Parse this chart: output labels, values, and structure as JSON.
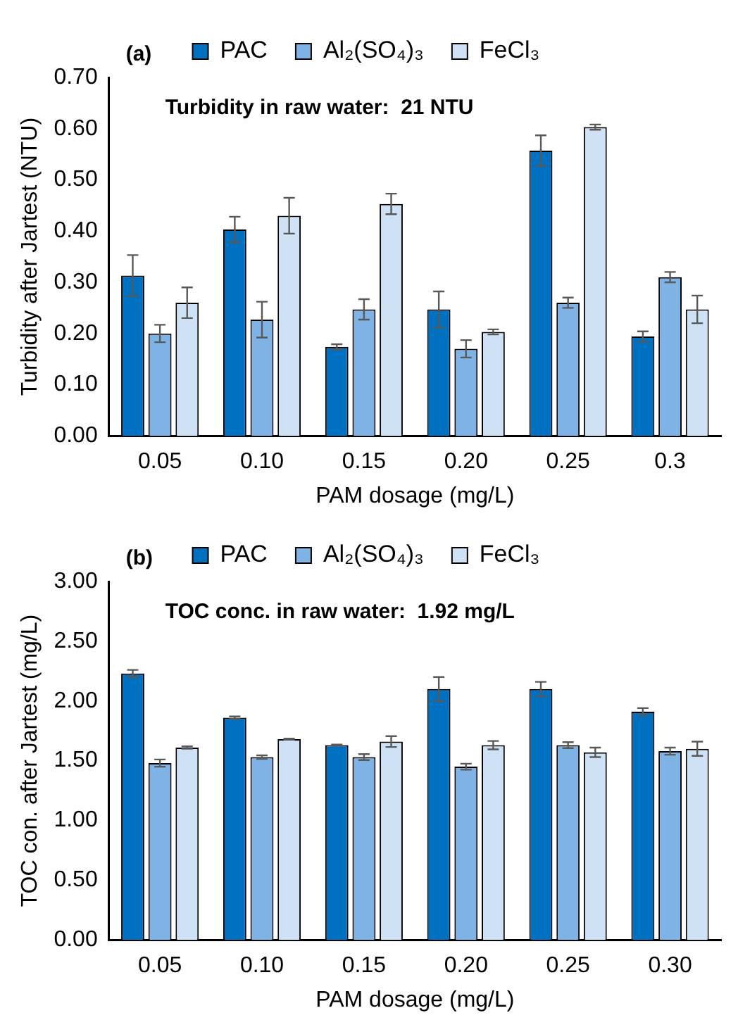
{
  "chart_data": [
    {
      "type": "bar",
      "annotations": [
        "(a)",
        "Turbidity in raw water:  21 NTU"
      ],
      "xlabel": "PAM dosage (mg/L)",
      "ylabel": "Turbidity after Jartest (NTU)",
      "categories": [
        "0.05",
        "0.10",
        "0.15",
        "0.20",
        "0.25",
        "0.3"
      ],
      "series": [
        {
          "name": "PAC",
          "color": "#0070c0",
          "values": [
            0.313,
            0.403,
            0.174,
            0.247,
            0.557,
            0.194
          ],
          "errors": [
            0.04,
            0.025,
            0.005,
            0.035,
            0.03,
            0.01
          ]
        },
        {
          "name": "Al₂(SO₄)₃",
          "color": "#7fb2e5",
          "values": [
            0.2,
            0.227,
            0.247,
            0.17,
            0.26,
            0.31
          ],
          "errors": [
            0.017,
            0.035,
            0.02,
            0.017,
            0.01,
            0.01
          ]
        },
        {
          "name": "FeCl₃",
          "color": "#cfe2f5",
          "values": [
            0.26,
            0.43,
            0.453,
            0.203,
            0.603,
            0.247
          ],
          "errors": [
            0.03,
            0.035,
            0.02,
            0.005,
            0.005,
            0.027
          ]
        }
      ],
      "ylim": [
        0,
        0.7
      ],
      "yticks": [
        {
          "value": 0,
          "label": "0.00"
        },
        {
          "value": 0.1,
          "label": "0.10"
        },
        {
          "value": 0.2,
          "label": "0.20"
        },
        {
          "value": 0.3,
          "label": "0.30"
        },
        {
          "value": 0.4,
          "label": "0.40"
        },
        {
          "value": 0.5,
          "label": "0.50"
        },
        {
          "value": 0.6,
          "label": "0.60"
        },
        {
          "value": 0.7,
          "label": "0.70"
        }
      ],
      "grid": false,
      "legend": "top"
    },
    {
      "type": "bar",
      "annotations": [
        "(b)",
        "TOC conc. in raw water:  1.92 mg/L"
      ],
      "xlabel": "PAM dosage (mg/L)",
      "ylabel": "TOC con. after Jartest (mg/L)",
      "categories": [
        "0.05",
        "0.10",
        "0.15",
        "0.20",
        "0.25",
        "0.30"
      ],
      "series": [
        {
          "name": "PAC",
          "color": "#0070c0",
          "values": [
            2.23,
            1.86,
            1.63,
            2.1,
            2.1,
            1.91
          ],
          "errors": [
            0.03,
            0.01,
            0.005,
            0.1,
            0.06,
            0.03
          ]
        },
        {
          "name": "Al₂(SO₄)₃",
          "color": "#7fb2e5",
          "values": [
            1.48,
            1.53,
            1.53,
            1.45,
            1.63,
            1.58
          ],
          "errors": [
            0.03,
            0.015,
            0.025,
            0.025,
            0.025,
            0.03
          ]
        },
        {
          "name": "FeCl₃",
          "color": "#cfe2f5",
          "values": [
            1.61,
            1.68,
            1.66,
            1.63,
            1.57,
            1.6
          ],
          "errors": [
            0.01,
            0.005,
            0.045,
            0.035,
            0.04,
            0.06
          ]
        }
      ],
      "ylim": [
        0,
        3
      ],
      "yticks": [
        {
          "value": 0,
          "label": "0.00"
        },
        {
          "value": 0.5,
          "label": "0.50"
        },
        {
          "value": 1,
          "label": "1.00"
        },
        {
          "value": 1.5,
          "label": "1.50"
        },
        {
          "value": 2,
          "label": "2.00"
        },
        {
          "value": 2.5,
          "label": "2.50"
        },
        {
          "value": 3,
          "label": "3.00"
        }
      ],
      "grid": false,
      "legend": "top"
    }
  ]
}
